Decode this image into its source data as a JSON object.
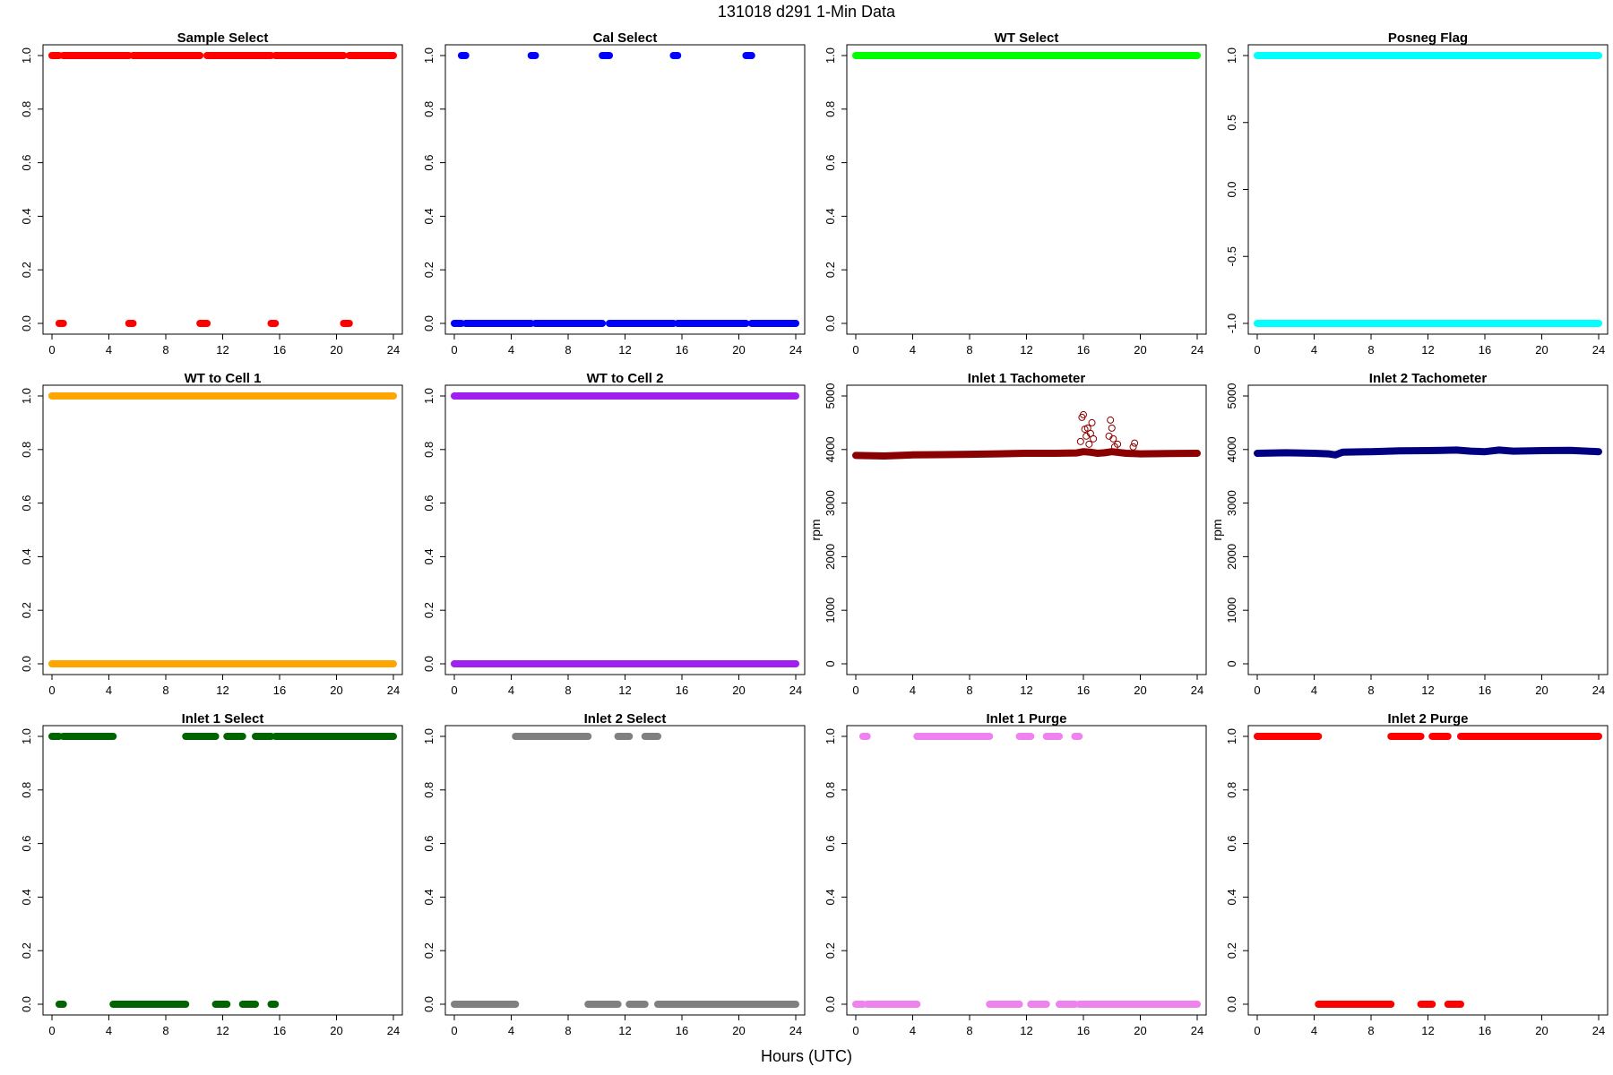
{
  "figure": {
    "title": "131018   d291   1-Min Data",
    "xlabel": "Hours (UTC)"
  },
  "chart_data": [
    {
      "type": "scatter",
      "title": "Sample Select",
      "color": "#ff0000",
      "ylabel": "",
      "xlim": [
        0,
        24
      ],
      "xticks": [
        0,
        4,
        8,
        12,
        16,
        20,
        24
      ],
      "ylim": [
        0,
        1
      ],
      "yticks": [
        0.0,
        0.2,
        0.4,
        0.6,
        0.8,
        1.0
      ],
      "ytick_labels": [
        "0.0",
        "0.2",
        "0.4",
        "0.6",
        "0.8",
        "1.0"
      ],
      "segments": [
        {
          "y": 1,
          "x": [
            [
              0,
              0.5
            ],
            [
              0.8,
              5.4
            ],
            [
              5.7,
              10.4
            ],
            [
              10.9,
              15.4
            ],
            [
              15.7,
              20.5
            ],
            [
              20.9,
              24
            ]
          ]
        },
        {
          "y": 0,
          "x": [
            [
              0.5,
              0.8
            ],
            [
              5.4,
              5.7
            ],
            [
              10.4,
              10.9
            ],
            [
              15.4,
              15.7
            ],
            [
              20.5,
              20.9
            ]
          ]
        }
      ]
    },
    {
      "type": "scatter",
      "title": "Cal Select",
      "color": "#0000ff",
      "ylabel": "",
      "xlim": [
        0,
        24
      ],
      "xticks": [
        0,
        4,
        8,
        12,
        16,
        20,
        24
      ],
      "ylim": [
        0,
        1
      ],
      "yticks": [
        0.0,
        0.2,
        0.4,
        0.6,
        0.8,
        1.0
      ],
      "ytick_labels": [
        "0.0",
        "0.2",
        "0.4",
        "0.6",
        "0.8",
        "1.0"
      ],
      "segments": [
        {
          "y": 1,
          "x": [
            [
              0.5,
              0.8
            ],
            [
              5.4,
              5.7
            ],
            [
              10.4,
              10.9
            ],
            [
              15.4,
              15.7
            ],
            [
              20.5,
              20.9
            ]
          ]
        },
        {
          "y": 0,
          "x": [
            [
              0,
              0.5
            ],
            [
              0.8,
              5.4
            ],
            [
              5.7,
              10.4
            ],
            [
              10.9,
              15.4
            ],
            [
              15.7,
              20.5
            ],
            [
              20.9,
              24
            ]
          ]
        }
      ]
    },
    {
      "type": "scatter",
      "title": "WT Select",
      "color": "#00ff00",
      "ylabel": "",
      "xlim": [
        0,
        24
      ],
      "xticks": [
        0,
        4,
        8,
        12,
        16,
        20,
        24
      ],
      "ylim": [
        0,
        1
      ],
      "yticks": [
        0.0,
        0.2,
        0.4,
        0.6,
        0.8,
        1.0
      ],
      "ytick_labels": [
        "0.0",
        "0.2",
        "0.4",
        "0.6",
        "0.8",
        "1.0"
      ],
      "segments": [
        {
          "y": 1,
          "x": [
            [
              0,
              24
            ]
          ]
        }
      ]
    },
    {
      "type": "scatter",
      "title": "Posneg Flag",
      "color": "#00ffff",
      "ylabel": "",
      "xlim": [
        0,
        24
      ],
      "xticks": [
        0,
        4,
        8,
        12,
        16,
        20,
        24
      ],
      "ylim": [
        -1,
        1
      ],
      "yticks": [
        -1.0,
        -0.5,
        0.0,
        0.5,
        1.0
      ],
      "ytick_labels": [
        "-1.0",
        "-0.5",
        "0.0",
        "0.5",
        "1.0"
      ],
      "segments": [
        {
          "y": 1,
          "x": [
            [
              0,
              24
            ]
          ]
        },
        {
          "y": -1,
          "x": [
            [
              0,
              24
            ]
          ]
        }
      ]
    },
    {
      "type": "scatter",
      "title": "WT to Cell 1",
      "color": "#ffa500",
      "ylabel": "",
      "xlim": [
        0,
        24
      ],
      "xticks": [
        0,
        4,
        8,
        12,
        16,
        20,
        24
      ],
      "ylim": [
        0,
        1
      ],
      "yticks": [
        0.0,
        0.2,
        0.4,
        0.6,
        0.8,
        1.0
      ],
      "ytick_labels": [
        "0.0",
        "0.2",
        "0.4",
        "0.6",
        "0.8",
        "1.0"
      ],
      "segments": [
        {
          "y": 1,
          "x": [
            [
              0,
              24
            ]
          ]
        },
        {
          "y": 0,
          "x": [
            [
              0,
              24
            ]
          ]
        }
      ]
    },
    {
      "type": "scatter",
      "title": "WT to Cell 2",
      "color": "#a020f0",
      "ylabel": "",
      "xlim": [
        0,
        24
      ],
      "xticks": [
        0,
        4,
        8,
        12,
        16,
        20,
        24
      ],
      "ylim": [
        0,
        1
      ],
      "yticks": [
        0.0,
        0.2,
        0.4,
        0.6,
        0.8,
        1.0
      ],
      "ytick_labels": [
        "0.0",
        "0.2",
        "0.4",
        "0.6",
        "0.8",
        "1.0"
      ],
      "segments": [
        {
          "y": 1,
          "x": [
            [
              0,
              24
            ]
          ]
        },
        {
          "y": 0,
          "x": [
            [
              0,
              24
            ]
          ]
        }
      ]
    },
    {
      "type": "scatter",
      "title": "Inlet 1 Tachometer",
      "color": "#8b0000",
      "ylabel": "rpm",
      "xlim": [
        0,
        24
      ],
      "xticks": [
        0,
        4,
        8,
        12,
        16,
        20,
        24
      ],
      "ylim": [
        0,
        5000
      ],
      "yticks": [
        0,
        1000,
        2000,
        3000,
        4000,
        5000
      ],
      "ytick_labels": [
        "0",
        "1000",
        "2000",
        "3000",
        "4000",
        "5000"
      ],
      "series_line": [
        [
          0,
          3890
        ],
        [
          2,
          3880
        ],
        [
          4,
          3900
        ],
        [
          6,
          3905
        ],
        [
          8,
          3910
        ],
        [
          10,
          3920
        ],
        [
          12,
          3930
        ],
        [
          14,
          3930
        ],
        [
          15.5,
          3935
        ],
        [
          16,
          3960
        ],
        [
          16.5,
          3950
        ],
        [
          17,
          3930
        ],
        [
          17.5,
          3940
        ],
        [
          18,
          3960
        ],
        [
          19,
          3930
        ],
        [
          20,
          3920
        ],
        [
          22,
          3925
        ],
        [
          24,
          3930
        ]
      ],
      "outliers": [
        [
          15.8,
          4150
        ],
        [
          15.9,
          4600
        ],
        [
          16.0,
          4650
        ],
        [
          16.1,
          4380
        ],
        [
          16.2,
          4250
        ],
        [
          16.3,
          4400
        ],
        [
          16.5,
          4300
        ],
        [
          16.6,
          4500
        ],
        [
          16.7,
          4200
        ],
        [
          16.4,
          4100
        ],
        [
          17.8,
          4250
        ],
        [
          17.9,
          4550
        ],
        [
          18.0,
          4400
        ],
        [
          18.1,
          4200
        ],
        [
          18.2,
          4050
        ],
        [
          18.4,
          4100
        ],
        [
          19.5,
          4050
        ],
        [
          19.6,
          4120
        ]
      ]
    },
    {
      "type": "scatter",
      "title": "Inlet 2 Tachometer",
      "color": "#000080",
      "ylabel": "rpm",
      "xlim": [
        0,
        24
      ],
      "xticks": [
        0,
        4,
        8,
        12,
        16,
        20,
        24
      ],
      "ylim": [
        0,
        5000
      ],
      "yticks": [
        0,
        1000,
        2000,
        3000,
        4000,
        5000
      ],
      "ytick_labels": [
        "0",
        "1000",
        "2000",
        "3000",
        "4000",
        "5000"
      ],
      "series_line": [
        [
          0,
          3930
        ],
        [
          2,
          3940
        ],
        [
          4,
          3930
        ],
        [
          5,
          3920
        ],
        [
          5.5,
          3900
        ],
        [
          6,
          3950
        ],
        [
          8,
          3960
        ],
        [
          10,
          3975
        ],
        [
          12,
          3980
        ],
        [
          13,
          3985
        ],
        [
          14,
          3990
        ],
        [
          15,
          3970
        ],
        [
          16,
          3960
        ],
        [
          17,
          3990
        ],
        [
          18,
          3970
        ],
        [
          20,
          3980
        ],
        [
          22,
          3985
        ],
        [
          24,
          3960
        ]
      ]
    },
    {
      "type": "scatter",
      "title": "Inlet 1 Select",
      "color": "#006400",
      "ylabel": "",
      "xlim": [
        0,
        24
      ],
      "xticks": [
        0,
        4,
        8,
        12,
        16,
        20,
        24
      ],
      "ylim": [
        0,
        1
      ],
      "yticks": [
        0.0,
        0.2,
        0.4,
        0.6,
        0.8,
        1.0
      ],
      "ytick_labels": [
        "0.0",
        "0.2",
        "0.4",
        "0.6",
        "0.8",
        "1.0"
      ],
      "segments": [
        {
          "y": 1,
          "x": [
            [
              0,
              0.5
            ],
            [
              0.8,
              4.3
            ],
            [
              9.4,
              11.5
            ],
            [
              12.3,
              13.4
            ],
            [
              14.3,
              15.4
            ],
            [
              15.7,
              24
            ]
          ]
        },
        {
          "y": 0,
          "x": [
            [
              0.5,
              0.8
            ],
            [
              4.3,
              9.4
            ],
            [
              11.5,
              12.3
            ],
            [
              13.4,
              14.3
            ],
            [
              15.4,
              15.7
            ]
          ]
        }
      ]
    },
    {
      "type": "scatter",
      "title": "Inlet 2 Select",
      "color": "#808080",
      "ylabel": "",
      "xlim": [
        0,
        24
      ],
      "xticks": [
        0,
        4,
        8,
        12,
        16,
        20,
        24
      ],
      "ylim": [
        0,
        1
      ],
      "yticks": [
        0.0,
        0.2,
        0.4,
        0.6,
        0.8,
        1.0
      ],
      "ytick_labels": [
        "0.0",
        "0.2",
        "0.4",
        "0.6",
        "0.8",
        "1.0"
      ],
      "segments": [
        {
          "y": 1,
          "x": [
            [
              4.3,
              9.4
            ],
            [
              11.5,
              12.3
            ],
            [
              13.4,
              14.3
            ]
          ]
        },
        {
          "y": 0,
          "x": [
            [
              0,
              4.3
            ],
            [
              9.4,
              11.5
            ],
            [
              12.3,
              13.4
            ],
            [
              14.3,
              24
            ]
          ]
        }
      ]
    },
    {
      "type": "scatter",
      "title": "Inlet 1 Purge",
      "color": "#ee82ee",
      "ylabel": "",
      "xlim": [
        0,
        24
      ],
      "xticks": [
        0,
        4,
        8,
        12,
        16,
        20,
        24
      ],
      "ylim": [
        0,
        1
      ],
      "yticks": [
        0.0,
        0.2,
        0.4,
        0.6,
        0.8,
        1.0
      ],
      "ytick_labels": [
        "0.0",
        "0.2",
        "0.4",
        "0.6",
        "0.8",
        "1.0"
      ],
      "segments": [
        {
          "y": 1,
          "x": [
            [
              0.5,
              0.8
            ],
            [
              4.3,
              9.4
            ],
            [
              11.5,
              12.3
            ],
            [
              13.4,
              14.3
            ],
            [
              15.4,
              15.7
            ]
          ]
        },
        {
          "y": 0,
          "x": [
            [
              0,
              0.5
            ],
            [
              0.8,
              4.3
            ],
            [
              9.4,
              11.5
            ],
            [
              12.3,
              13.4
            ],
            [
              14.3,
              15.4
            ],
            [
              15.7,
              24
            ]
          ]
        }
      ]
    },
    {
      "type": "scatter",
      "title": "Inlet 2 Purge",
      "color": "#ff0000",
      "ylabel": "",
      "xlim": [
        0,
        24
      ],
      "xticks": [
        0,
        4,
        8,
        12,
        16,
        20,
        24
      ],
      "ylim": [
        0,
        1
      ],
      "yticks": [
        0.0,
        0.2,
        0.4,
        0.6,
        0.8,
        1.0
      ],
      "ytick_labels": [
        "0.0",
        "0.2",
        "0.4",
        "0.6",
        "0.8",
        "1.0"
      ],
      "segments": [
        {
          "y": 1,
          "x": [
            [
              0,
              4.3
            ],
            [
              9.4,
              11.5
            ],
            [
              12.3,
              13.4
            ],
            [
              14.3,
              24
            ]
          ]
        },
        {
          "y": 0,
          "x": [
            [
              4.3,
              9.4
            ],
            [
              11.5,
              12.3
            ],
            [
              13.4,
              14.3
            ]
          ]
        }
      ]
    }
  ]
}
